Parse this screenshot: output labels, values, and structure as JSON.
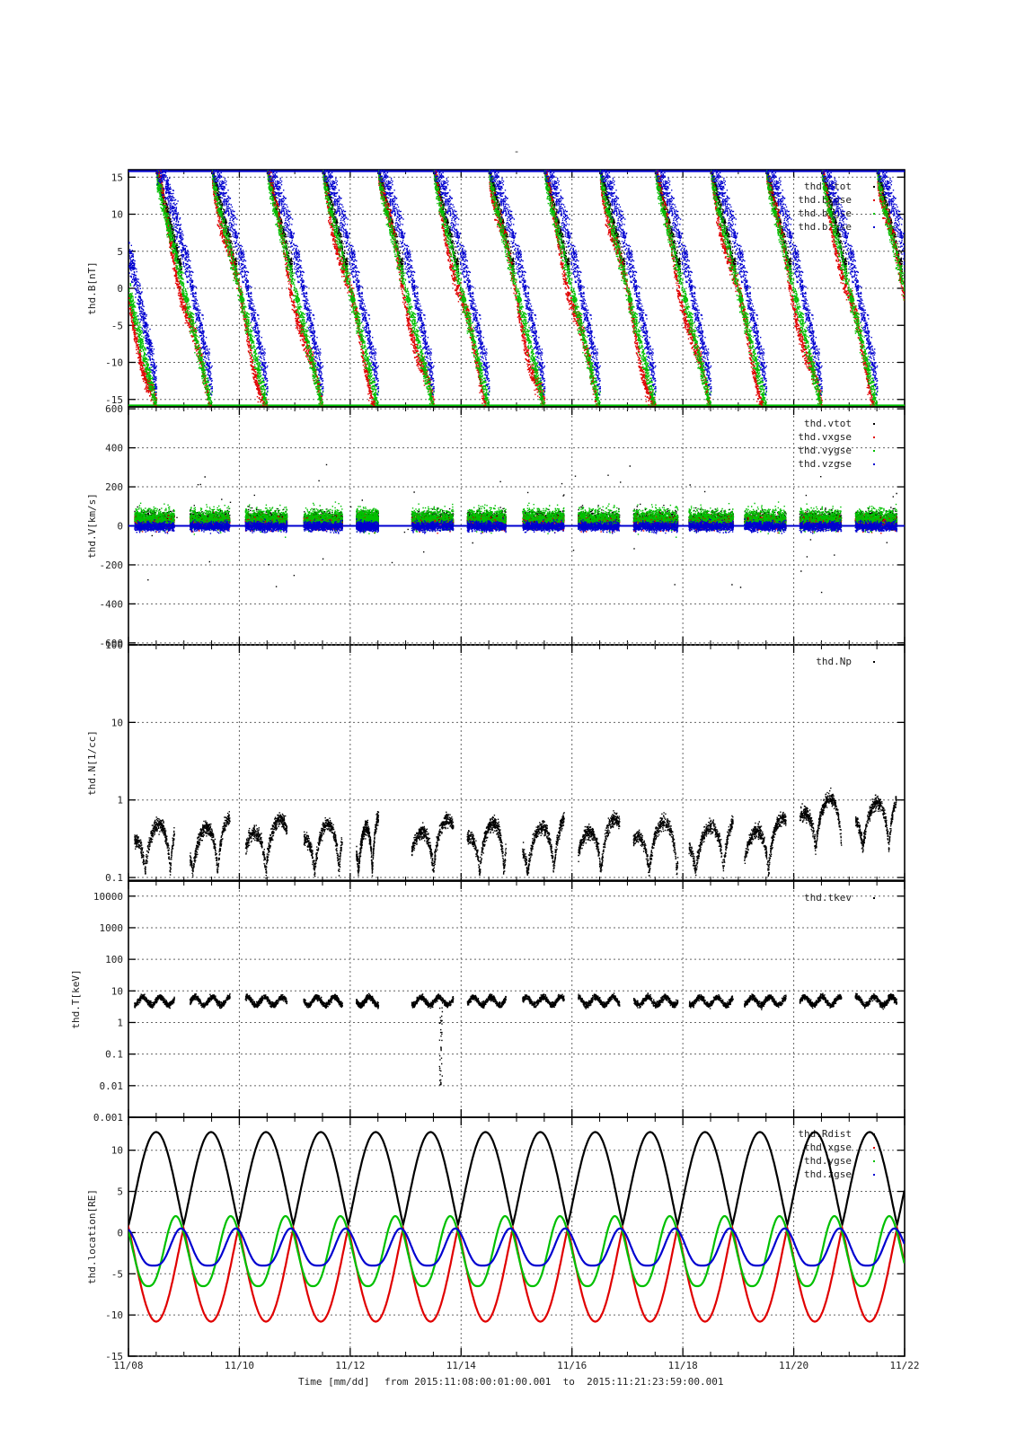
{
  "page": {
    "title_mark": "-",
    "footer": {
      "time_label": "Time [mm/dd]",
      "range_text": "from 2015:11:08:00:01:00.001  to  2015:11:21:23:59:00.001"
    }
  },
  "colors": {
    "black": "#000000",
    "red": "#e00000",
    "green": "#00c000",
    "blue": "#0000d0",
    "grid": "#666666"
  },
  "chart_data": {
    "type": "scatter",
    "x_axis": {
      "unit": "day-of-november-2015",
      "range": [
        8,
        22
      ],
      "ticks": [
        8,
        10,
        12,
        14,
        16,
        18,
        20,
        22
      ],
      "tick_labels": [
        "11/08",
        "11/10",
        "11/12",
        "11/14",
        "11/16",
        "11/18",
        "11/20",
        "11/22"
      ],
      "xlabel": "Time [mm/dd]"
    },
    "panels": [
      {
        "id": "B",
        "ylabel": "thd.B[nT]",
        "scale": "linear",
        "ylim": [
          -16,
          16
        ],
        "ticks": [
          15,
          10,
          5,
          0,
          -5,
          -10,
          -15
        ],
        "legend": [
          "thd.btot",
          "thd.bxgse",
          "thd.bygse",
          "thd.bzgse"
        ],
        "series_colors": [
          "black",
          "red",
          "green",
          "blue"
        ]
      },
      {
        "id": "V",
        "ylabel": "thd.V[km/s]",
        "scale": "linear",
        "ylim": [
          -610,
          610
        ],
        "ticks": [
          600,
          400,
          200,
          0,
          -200,
          -400,
          -600
        ],
        "legend": [
          "thd.vtot",
          "thd.vxgse",
          "thd.vygse",
          "thd.vzgse"
        ],
        "series_colors": [
          "black",
          "red",
          "green",
          "blue"
        ]
      },
      {
        "id": "N",
        "ylabel": "thd.N[1/cc]",
        "scale": "log",
        "ylim": [
          0.09,
          100
        ],
        "ticks": [
          100,
          10,
          1,
          0.1
        ],
        "tick_labels": [
          "100",
          "10",
          "1",
          "0.1"
        ],
        "legend": [
          "thd.Np"
        ],
        "series_colors": [
          "black"
        ]
      },
      {
        "id": "T",
        "ylabel": "thd.T[keV]",
        "scale": "log",
        "ylim": [
          0.001,
          30000
        ],
        "ticks": [
          10000,
          1000,
          100,
          10,
          1,
          0.1,
          0.01,
          0.001
        ],
        "tick_labels": [
          "10000",
          "1000",
          "100",
          "10",
          "1",
          "0.1",
          "0.01",
          "0.001"
        ],
        "legend": [
          "thd.tkev"
        ],
        "series_colors": [
          "black"
        ]
      },
      {
        "id": "loc",
        "ylabel": "thd.location[RE]",
        "scale": "linear",
        "ylim": [
          -15,
          14
        ],
        "ticks": [
          10,
          5,
          0,
          -5,
          -10,
          -15
        ],
        "legend": [
          "thd.Rdist",
          "thd.xgse",
          "thd.ygse",
          "thd.zgse"
        ],
        "series_colors": [
          "black",
          "red",
          "green",
          "blue"
        ],
        "orbit": {
          "period_days": 0.99,
          "first_apogee_day": 8.5,
          "rdist_range": [
            1,
            12.2
          ],
          "x_range": [
            -10.8,
            0.5
          ],
          "y_range": [
            -6.5,
            2
          ],
          "z_range": [
            -4,
            0.5
          ]
        }
      }
    ],
    "plasma_intervals": [
      [
        8.1,
        8.82
      ],
      [
        9.1,
        9.82
      ],
      [
        10.1,
        10.85
      ],
      [
        11.15,
        11.85
      ],
      [
        12.1,
        12.5
      ],
      [
        13.1,
        13.85
      ],
      [
        14.1,
        14.8
      ],
      [
        15.1,
        15.85
      ],
      [
        16.1,
        16.85
      ],
      [
        17.1,
        17.9
      ],
      [
        18.1,
        18.9
      ],
      [
        19.1,
        19.85
      ],
      [
        20.1,
        20.85
      ],
      [
        21.1,
        21.85
      ]
    ]
  }
}
